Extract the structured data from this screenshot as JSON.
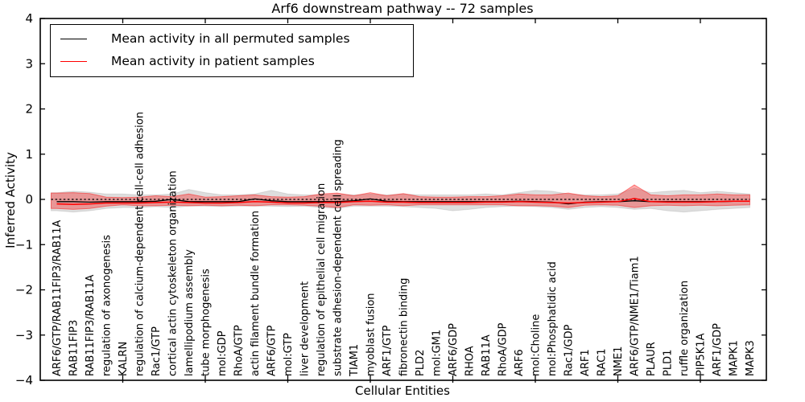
{
  "figure": {
    "title": "Arf6 downstream pathway -- 72 samples",
    "ylabel": "Inferred Activity",
    "xlabel": "Cellular Entities"
  },
  "legend": {
    "position": "upper-left",
    "entries": [
      {
        "label": "Mean activity in all permuted samples",
        "color": "#000000"
      },
      {
        "label": "Mean activity in patient samples",
        "color": "#ff0000"
      }
    ]
  },
  "colors": {
    "permuted_line": "#000000",
    "patient_line": "#ff0000",
    "permuted_band_fill": "rgba(0,0,0,0.13)",
    "permuted_band_edge": "rgba(0,0,0,0.10)",
    "patient_band_fill": "rgba(255,0,0,0.32)",
    "patient_band_edge": "rgba(255,0,0,0.45)",
    "zero_line": "#000000",
    "axis": "#000000"
  },
  "chart_data": {
    "type": "line",
    "title": "Arf6 downstream pathway -- 72 samples",
    "xlabel": "Cellular Entities",
    "ylabel": "Inferred Activity",
    "ylim": [
      -4,
      4
    ],
    "ytick_labels": [
      "4",
      "3",
      "2",
      "1",
      "0",
      "−1",
      "−2",
      "−3",
      "−4"
    ],
    "ytick_values": [
      4,
      3,
      2,
      1,
      0,
      -1,
      -2,
      -3,
      -4
    ],
    "xtick_data_positions": [
      5,
      10,
      15,
      20,
      25,
      30,
      35,
      40
    ],
    "grid": false,
    "legend_position": "upper-left",
    "categories": [
      "ARF6/GTP/RAB11FIP3/RAB11A",
      "RAB11FIP3",
      "RAB11FIP3/RAB11A",
      "regulation of axonogenesis",
      "KALRN",
      "regulation of calcium-dependent cell-cell adhesion",
      "Rac1/GTP",
      "cortical actin cytoskeleton organization",
      "lamellipodium assembly",
      "tube morphogenesis",
      "mol:GDP",
      "RhoA/GTP",
      "actin filament bundle formation",
      "ARF6/GTP",
      "mol:GTP",
      "liver development",
      "regulation of epithelial cell migration",
      "substrate adhesion-dependent cell spreading",
      "TIAM1",
      "myoblast fusion",
      "ARF1/GTP",
      "fibronectin binding",
      "PLD2",
      "mol:GM1",
      "ARF6/GDP",
      "RHOA",
      "RAB11A",
      "RhoA/GDP",
      "ARF6",
      "mol:Choline",
      "mol:Phosphatidic acid",
      "Rac1/GDP",
      "ARF1",
      "RAC1",
      "NME1",
      "ARF6/GTP/NME1/Tiam1",
      "PLAUR",
      "PLD1",
      "ruffle organization",
      "PIP5K1A",
      "ARF1/GDP",
      "MAPK1",
      "MAPK3"
    ],
    "series": [
      {
        "name": "Mean activity in all permuted samples",
        "color": "#000000",
        "values": [
          -0.05,
          -0.05,
          -0.06,
          -0.05,
          -0.05,
          -0.05,
          -0.04,
          0.0,
          -0.05,
          -0.05,
          -0.05,
          -0.05,
          0.01,
          -0.03,
          -0.05,
          -0.05,
          -0.05,
          -0.05,
          -0.03,
          0.01,
          -0.04,
          -0.05,
          -0.05,
          -0.05,
          -0.05,
          -0.05,
          -0.05,
          -0.05,
          -0.04,
          -0.05,
          -0.06,
          -0.1,
          -0.06,
          -0.05,
          -0.05,
          -0.03,
          -0.05,
          -0.05,
          -0.05,
          -0.05,
          -0.05,
          -0.04,
          -0.04
        ],
        "band_upper": [
          0.15,
          0.18,
          0.16,
          0.12,
          0.12,
          0.1,
          0.1,
          0.12,
          0.22,
          0.15,
          0.1,
          0.1,
          0.12,
          0.2,
          0.12,
          0.1,
          0.1,
          0.12,
          0.1,
          0.12,
          0.1,
          0.12,
          0.1,
          0.1,
          0.1,
          0.1,
          0.12,
          0.1,
          0.15,
          0.2,
          0.18,
          0.12,
          0.1,
          0.1,
          0.12,
          0.25,
          0.15,
          0.18,
          0.2,
          0.15,
          0.18,
          0.15,
          0.12
        ],
        "band_lower": [
          -0.25,
          -0.28,
          -0.25,
          -0.2,
          -0.18,
          -0.18,
          -0.16,
          -0.18,
          -0.15,
          -0.15,
          -0.16,
          -0.15,
          -0.15,
          -0.15,
          -0.16,
          -0.15,
          -0.18,
          -0.2,
          -0.15,
          -0.15,
          -0.15,
          -0.16,
          -0.18,
          -0.2,
          -0.25,
          -0.22,
          -0.18,
          -0.16,
          -0.15,
          -0.16,
          -0.18,
          -0.22,
          -0.18,
          -0.16,
          -0.18,
          -0.22,
          -0.2,
          -0.25,
          -0.28,
          -0.25,
          -0.22,
          -0.2,
          -0.18
        ]
      },
      {
        "name": "Mean activity in patient samples",
        "color": "#ff0000",
        "values": [
          -0.1,
          -0.11,
          -0.1,
          -0.08,
          -0.08,
          -0.08,
          -0.07,
          -0.06,
          -0.07,
          -0.08,
          -0.08,
          -0.07,
          -0.05,
          -0.06,
          -0.08,
          -0.08,
          -0.07,
          -0.07,
          -0.05,
          -0.04,
          -0.06,
          -0.06,
          -0.07,
          -0.07,
          -0.07,
          -0.07,
          -0.06,
          -0.06,
          -0.05,
          -0.06,
          -0.07,
          -0.08,
          -0.07,
          -0.06,
          -0.05,
          0.02,
          -0.05,
          -0.06,
          -0.06,
          -0.06,
          -0.05,
          -0.04,
          -0.04
        ],
        "band_upper": [
          0.14,
          0.15,
          0.13,
          0.05,
          0.04,
          0.05,
          0.08,
          0.06,
          0.12,
          0.05,
          0.06,
          0.08,
          0.1,
          0.06,
          0.05,
          0.06,
          0.12,
          0.14,
          0.08,
          0.15,
          0.08,
          0.13,
          0.06,
          0.05,
          0.05,
          0.06,
          0.06,
          0.08,
          0.12,
          0.1,
          0.1,
          0.14,
          0.08,
          0.06,
          0.08,
          0.32,
          0.1,
          0.08,
          0.1,
          0.1,
          0.12,
          0.1,
          0.1
        ],
        "band_lower": [
          -0.2,
          -0.22,
          -0.2,
          -0.15,
          -0.12,
          -0.14,
          -0.14,
          -0.13,
          -0.14,
          -0.13,
          -0.14,
          -0.13,
          -0.14,
          -0.12,
          -0.12,
          -0.13,
          -0.15,
          -0.18,
          -0.12,
          -0.13,
          -0.12,
          -0.14,
          -0.12,
          -0.12,
          -0.12,
          -0.12,
          -0.12,
          -0.12,
          -0.14,
          -0.14,
          -0.15,
          -0.18,
          -0.13,
          -0.12,
          -0.13,
          -0.18,
          -0.14,
          -0.13,
          -0.14,
          -0.13,
          -0.14,
          -0.13,
          -0.12
        ]
      }
    ],
    "zero_line": {
      "value": 0,
      "style": "dashed",
      "color": "#000000"
    }
  }
}
